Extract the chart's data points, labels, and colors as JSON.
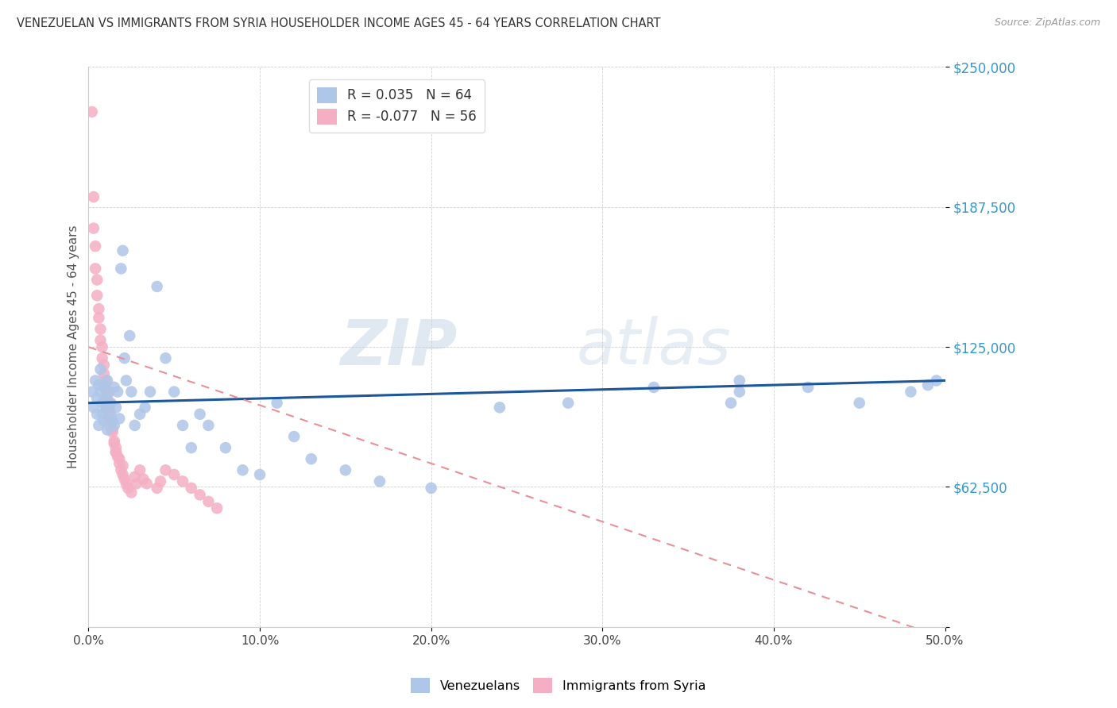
{
  "title": "VENEZUELAN VS IMMIGRANTS FROM SYRIA HOUSEHOLDER INCOME AGES 45 - 64 YEARS CORRELATION CHART",
  "source": "Source: ZipAtlas.com",
  "ylabel": "Householder Income Ages 45 - 64 years",
  "xlim": [
    0.0,
    0.5
  ],
  "ylim": [
    0,
    250000
  ],
  "yticks": [
    0,
    62500,
    125000,
    187500,
    250000
  ],
  "ytick_labels": [
    "",
    "$62,500",
    "$125,000",
    "$187,500",
    "$250,000"
  ],
  "xticks": [
    0.0,
    0.1,
    0.2,
    0.3,
    0.4,
    0.5
  ],
  "xtick_labels": [
    "0.0%",
    "10.0%",
    "20.0%",
    "30.0%",
    "40.0%",
    "50.0%"
  ],
  "legend_R1": " 0.035",
  "legend_N1": "64",
  "legend_R2": "-0.077",
  "legend_N2": "56",
  "blue_color": "#aec6e8",
  "pink_color": "#f4afc4",
  "blue_line_color": "#1e5799",
  "pink_line_color": "#e8909a",
  "venezuelan_x": [
    0.002,
    0.003,
    0.004,
    0.005,
    0.005,
    0.006,
    0.006,
    0.007,
    0.007,
    0.008,
    0.008,
    0.009,
    0.009,
    0.01,
    0.01,
    0.011,
    0.011,
    0.012,
    0.012,
    0.013,
    0.013,
    0.014,
    0.015,
    0.015,
    0.016,
    0.017,
    0.018,
    0.019,
    0.02,
    0.021,
    0.022,
    0.024,
    0.025,
    0.027,
    0.03,
    0.033,
    0.036,
    0.04,
    0.045,
    0.05,
    0.055,
    0.06,
    0.065,
    0.07,
    0.08,
    0.09,
    0.1,
    0.11,
    0.12,
    0.13,
    0.15,
    0.17,
    0.2,
    0.24,
    0.28,
    0.33,
    0.38,
    0.42,
    0.45,
    0.48,
    0.49,
    0.495,
    0.375,
    0.38
  ],
  "venezuelan_y": [
    105000,
    98000,
    110000,
    102000,
    95000,
    108000,
    90000,
    105000,
    115000,
    100000,
    95000,
    108000,
    92000,
    102000,
    98000,
    110000,
    88000,
    100000,
    105000,
    95000,
    100000,
    92000,
    107000,
    90000,
    98000,
    105000,
    93000,
    160000,
    168000,
    120000,
    110000,
    130000,
    105000,
    90000,
    95000,
    98000,
    105000,
    152000,
    120000,
    105000,
    90000,
    80000,
    95000,
    90000,
    80000,
    70000,
    68000,
    100000,
    85000,
    75000,
    70000,
    65000,
    62000,
    98000,
    100000,
    107000,
    110000,
    107000,
    100000,
    105000,
    108000,
    110000,
    100000,
    105000
  ],
  "syria_x": [
    0.002,
    0.003,
    0.003,
    0.004,
    0.004,
    0.005,
    0.005,
    0.006,
    0.006,
    0.007,
    0.007,
    0.008,
    0.008,
    0.009,
    0.009,
    0.01,
    0.01,
    0.011,
    0.011,
    0.012,
    0.012,
    0.013,
    0.013,
    0.014,
    0.015,
    0.016,
    0.016,
    0.017,
    0.018,
    0.019,
    0.02,
    0.021,
    0.022,
    0.023,
    0.025,
    0.027,
    0.028,
    0.03,
    0.032,
    0.034,
    0.04,
    0.042,
    0.045,
    0.05,
    0.055,
    0.06,
    0.065,
    0.07,
    0.075,
    0.01,
    0.012,
    0.014,
    0.015,
    0.016,
    0.018,
    0.02
  ],
  "syria_y": [
    230000,
    192000,
    178000,
    170000,
    160000,
    155000,
    148000,
    142000,
    138000,
    133000,
    128000,
    125000,
    120000,
    117000,
    113000,
    110000,
    106000,
    103000,
    100000,
    97000,
    95000,
    92000,
    89000,
    87000,
    83000,
    80000,
    78000,
    76000,
    73000,
    70000,
    68000,
    66000,
    64000,
    62000,
    60000,
    67000,
    64000,
    70000,
    66000,
    64000,
    62000,
    65000,
    70000,
    68000,
    65000,
    62000,
    59000,
    56000,
    53000,
    98000,
    92000,
    88000,
    82000,
    78000,
    75000,
    72000
  ],
  "blue_trend_x0": 0.0,
  "blue_trend_y0": 100000,
  "blue_trend_x1": 0.5,
  "blue_trend_y1": 110000,
  "pink_trend_x0": 0.0,
  "pink_trend_y0": 125000,
  "pink_trend_x1": 0.5,
  "pink_trend_y1": -5000
}
